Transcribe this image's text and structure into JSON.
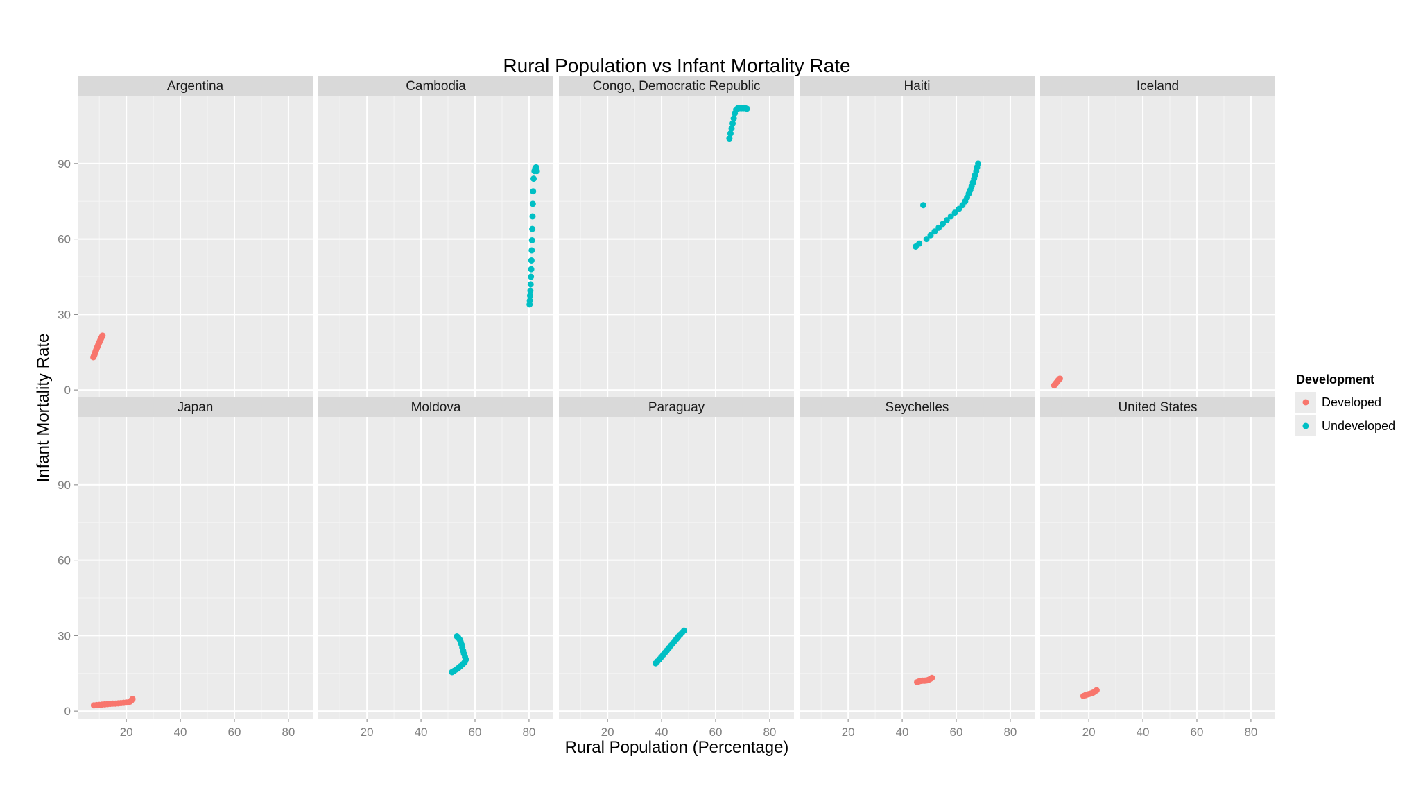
{
  "chart_data": {
    "type": "scatter",
    "title": "Rural Population vs Infant Mortality Rate",
    "xlabel": "Rural Population (Percentage)",
    "ylabel": "Infant Mortality Rate",
    "xlim": [
      2,
      89
    ],
    "ylim": [
      -3,
      117
    ],
    "x_ticks": [
      20,
      40,
      60,
      80
    ],
    "y_ticks": [
      0,
      30,
      60,
      90
    ],
    "grid": true,
    "legend": {
      "title": "Development",
      "position": "right",
      "entries": [
        {
          "name": "Developed",
          "color": "#F8766D"
        },
        {
          "name": "Undeveloped",
          "color": "#00BFC4"
        }
      ]
    },
    "panels": [
      {
        "name": "Argentina",
        "group": "Developed",
        "points": [
          [
            7.8,
            13
          ],
          [
            8.0,
            13.5
          ],
          [
            8.2,
            14
          ],
          [
            8.4,
            14.6
          ],
          [
            8.6,
            15.2
          ],
          [
            8.8,
            15.8
          ],
          [
            9.0,
            16.3
          ],
          [
            9.2,
            16.9
          ],
          [
            9.4,
            17.4
          ],
          [
            9.6,
            17.9
          ],
          [
            9.8,
            18.4
          ],
          [
            10.0,
            18.9
          ],
          [
            10.2,
            19.4
          ],
          [
            10.4,
            19.9
          ],
          [
            10.6,
            20.3
          ],
          [
            10.8,
            20.8
          ],
          [
            11.0,
            21.2
          ],
          [
            11.2,
            21.6
          ]
        ]
      },
      {
        "name": "Cambodia",
        "group": "Undeveloped",
        "points": [
          [
            80.2,
            34
          ],
          [
            80.3,
            35.5
          ],
          [
            80.4,
            37.5
          ],
          [
            80.5,
            39.5
          ],
          [
            80.6,
            42
          ],
          [
            80.7,
            45
          ],
          [
            80.8,
            48
          ],
          [
            80.9,
            51.5
          ],
          [
            81.0,
            55.5
          ],
          [
            81.1,
            59.5
          ],
          [
            81.2,
            64
          ],
          [
            81.3,
            69
          ],
          [
            81.4,
            74
          ],
          [
            81.5,
            79
          ],
          [
            81.7,
            84
          ],
          [
            82.0,
            87
          ],
          [
            82.3,
            88
          ],
          [
            82.6,
            88.5
          ],
          [
            82.9,
            87
          ]
        ]
      },
      {
        "name": "Congo, Democratic Republic",
        "group": "Undeveloped",
        "points": [
          [
            65.1,
            100
          ],
          [
            65.5,
            102
          ],
          [
            65.9,
            104
          ],
          [
            66.3,
            106
          ],
          [
            66.7,
            108
          ],
          [
            67.1,
            110
          ],
          [
            67.6,
            111.5
          ],
          [
            68.2,
            112
          ],
          [
            68.9,
            112
          ],
          [
            69.6,
            112
          ],
          [
            70.3,
            112
          ],
          [
            71.0,
            112
          ],
          [
            71.6,
            111.8
          ]
        ]
      },
      {
        "name": "Haiti",
        "group": "Undeveloped",
        "points": [
          [
            45.0,
            57
          ],
          [
            46.3,
            58.2
          ],
          [
            47.8,
            73.5
          ],
          [
            49.0,
            60
          ],
          [
            50.5,
            61.5
          ],
          [
            52.0,
            63
          ],
          [
            53.5,
            64.5
          ],
          [
            55.0,
            66
          ],
          [
            56.5,
            67.5
          ],
          [
            58.0,
            69
          ],
          [
            59.5,
            70.5
          ],
          [
            61.0,
            72
          ],
          [
            62.3,
            73.5
          ],
          [
            63.3,
            75
          ],
          [
            64.0,
            76.5
          ],
          [
            64.6,
            78
          ],
          [
            65.2,
            79.5
          ],
          [
            65.7,
            81
          ],
          [
            66.2,
            82.5
          ],
          [
            66.6,
            84
          ],
          [
            67.0,
            85.5
          ],
          [
            67.4,
            87
          ],
          [
            67.7,
            88.5
          ],
          [
            68.1,
            90
          ]
        ]
      },
      {
        "name": "Iceland",
        "group": "Developed",
        "points": [
          [
            7.2,
            1.8
          ],
          [
            7.5,
            2.2
          ],
          [
            7.8,
            2.6
          ],
          [
            8.1,
            3.0
          ],
          [
            8.4,
            3.4
          ],
          [
            8.7,
            3.8
          ],
          [
            9.0,
            4.2
          ],
          [
            9.3,
            4.5
          ]
        ]
      },
      {
        "name": "Japan",
        "group": "Developed",
        "points": [
          [
            8.0,
            2.3
          ],
          [
            9.0,
            2.4
          ],
          [
            10.0,
            2.5
          ],
          [
            11.0,
            2.6
          ],
          [
            12.0,
            2.7
          ],
          [
            13.0,
            2.8
          ],
          [
            14.0,
            2.9
          ],
          [
            15.0,
            3.0
          ],
          [
            16.0,
            3.0
          ],
          [
            17.0,
            3.1
          ],
          [
            18.0,
            3.2
          ],
          [
            19.0,
            3.3
          ],
          [
            20.0,
            3.4
          ],
          [
            20.8,
            3.5
          ],
          [
            21.4,
            3.8
          ],
          [
            21.9,
            4.3
          ],
          [
            22.3,
            4.8
          ]
        ]
      },
      {
        "name": "Moldova",
        "group": "Undeveloped",
        "points": [
          [
            51.5,
            15.5
          ],
          [
            52.3,
            16
          ],
          [
            53.1,
            16.6
          ],
          [
            53.9,
            17.2
          ],
          [
            54.7,
            17.9
          ],
          [
            55.5,
            18.7
          ],
          [
            56.2,
            19.5
          ],
          [
            56.6,
            20.5
          ],
          [
            56.3,
            21.5
          ],
          [
            55.9,
            22.8
          ],
          [
            55.6,
            24
          ],
          [
            55.3,
            25.3
          ],
          [
            55.0,
            26.5
          ],
          [
            54.7,
            27.5
          ],
          [
            54.3,
            28.5
          ],
          [
            53.8,
            29.2
          ],
          [
            53.3,
            29.7
          ]
        ]
      },
      {
        "name": "Paraguay",
        "group": "Undeveloped",
        "points": [
          [
            37.8,
            19
          ],
          [
            38.5,
            19.8
          ],
          [
            39.2,
            20.6
          ],
          [
            39.9,
            21.5
          ],
          [
            40.6,
            22.4
          ],
          [
            41.3,
            23.3
          ],
          [
            42.0,
            24.2
          ],
          [
            42.7,
            25.1
          ],
          [
            43.4,
            26
          ],
          [
            44.1,
            26.9
          ],
          [
            44.8,
            27.8
          ],
          [
            45.5,
            28.7
          ],
          [
            46.2,
            29.6
          ],
          [
            46.9,
            30.4
          ],
          [
            47.6,
            31.2
          ],
          [
            48.3,
            32.0
          ]
        ]
      },
      {
        "name": "Seychelles",
        "group": "Developed",
        "points": [
          [
            45.5,
            11.5
          ],
          [
            46.2,
            11.8
          ],
          [
            46.9,
            12
          ],
          [
            47.6,
            12.1
          ],
          [
            48.3,
            12.1
          ],
          [
            49.0,
            12.2
          ],
          [
            49.7,
            12.4
          ],
          [
            50.4,
            12.8
          ],
          [
            51.0,
            13.2
          ]
        ]
      },
      {
        "name": "United States",
        "group": "Developed",
        "points": [
          [
            18.0,
            6.0
          ],
          [
            18.7,
            6.3
          ],
          [
            19.4,
            6.6
          ],
          [
            20.1,
            6.8
          ],
          [
            20.8,
            7.0
          ],
          [
            21.5,
            7.3
          ],
          [
            22.2,
            7.7
          ],
          [
            22.9,
            8.3
          ]
        ]
      }
    ]
  }
}
